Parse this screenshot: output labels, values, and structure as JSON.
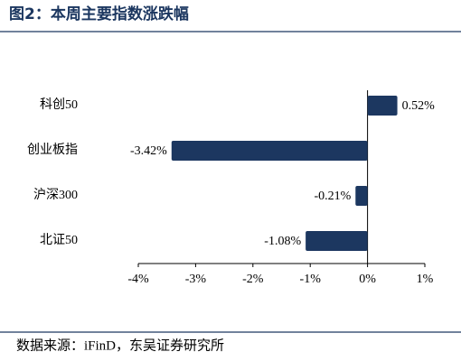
{
  "chart_data": {
    "type": "hbar",
    "title": "图2：本周主要指数涨跌幅",
    "categories": [
      "科创50",
      "创业板指",
      "沪深300",
      "北证50"
    ],
    "values": [
      0.52,
      -3.42,
      -0.21,
      -1.08
    ],
    "value_labels": [
      "0.52%",
      "-3.42%",
      "-0.21%",
      "-1.08%"
    ],
    "color": "#1c3760",
    "xlim": [
      -4,
      1
    ],
    "xticks": [
      {
        "value": -4,
        "label": "-4%"
      },
      {
        "value": -3,
        "label": "-3%"
      },
      {
        "value": -2,
        "label": "-2%"
      },
      {
        "value": -1,
        "label": "-1%"
      },
      {
        "value": 0,
        "label": "0%"
      },
      {
        "value": 1,
        "label": "1%"
      }
    ],
    "source": "数据来源：iFinD，东吴证券研究所"
  }
}
